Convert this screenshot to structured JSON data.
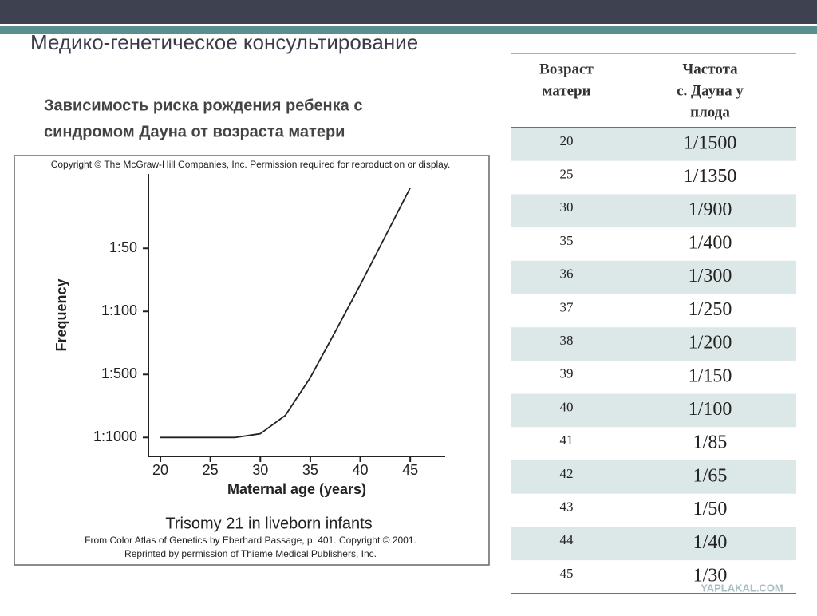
{
  "header": {
    "title": "Медико-генетическое консультирование"
  },
  "subtitle": [
    "Зависимость риска рождения ребенка с",
    "синдромом Дауна от возраста матери"
  ],
  "figure": {
    "copyright": "Copyright © The McGraw-Hill Companies, Inc. Permission required for reproduction or display.",
    "chart_data": {
      "type": "line",
      "title": "Trisomy 21 in liveborn infants",
      "xlabel": "Maternal age (years)",
      "ylabel": "Frequency",
      "x": [
        20,
        25,
        27.5,
        30,
        32.5,
        35,
        37.5,
        40,
        42.5,
        45
      ],
      "series": [
        {
          "color": "#222222",
          "values": [
            0,
            0,
            0,
            0.06,
            0.35,
            0.95,
            1.68,
            2.42,
            3.19,
            3.96
          ]
        }
      ],
      "xlim": [
        18.8,
        48.5
      ],
      "xticks": [
        20,
        25,
        30,
        35,
        40,
        45
      ],
      "ylim": [
        -0.3,
        4.18
      ],
      "yticks": [
        {
          "value": 0,
          "label": "1:1000"
        },
        {
          "value": 1,
          "label": "1:500"
        },
        {
          "value": 2,
          "label": "1:100"
        },
        {
          "value": 3,
          "label": "1:50"
        }
      ]
    },
    "credits": [
      "From Color Atlas of Genetics by Eberhard Passage, p. 401. Copyright © 2001.",
      "Reprinted by permission of Thieme Medical Publishers, Inc."
    ]
  },
  "table": {
    "header": [
      [
        "Возраст",
        "матери"
      ],
      [
        "Частота",
        "с. Дауна у",
        "плода"
      ]
    ],
    "rows": [
      [
        "20",
        "1/1500"
      ],
      [
        "25",
        "1/1350"
      ],
      [
        "30",
        "1/900"
      ],
      [
        "35",
        "1/400"
      ],
      [
        "36",
        "1/300"
      ],
      [
        "37",
        "1/250"
      ],
      [
        "38",
        "1/200"
      ],
      [
        "39",
        "1/150"
      ],
      [
        "40",
        "1/100"
      ],
      [
        "41",
        "1/85"
      ],
      [
        "42",
        "1/65"
      ],
      [
        "43",
        "1/50"
      ],
      [
        "44",
        "1/40"
      ],
      [
        "45",
        "1/30"
      ]
    ]
  },
  "watermark": "YAPLAKAL.COM"
}
